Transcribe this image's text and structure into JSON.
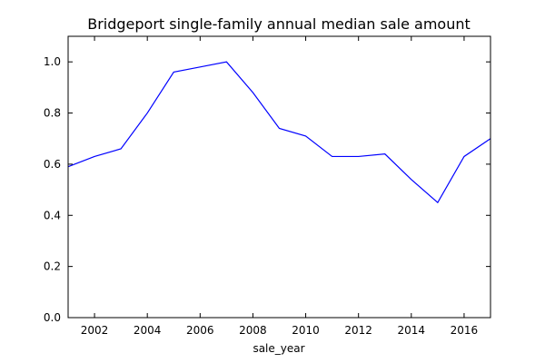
{
  "chart_data": {
    "type": "line",
    "title": "Bridgeport single-family annual median sale amount",
    "xlabel": "sale_year",
    "ylabel": "",
    "xlim": [
      2001,
      2017
    ],
    "ylim": [
      0.0,
      1.1
    ],
    "x_ticks": [
      2002,
      2004,
      2006,
      2008,
      2010,
      2012,
      2014,
      2016
    ],
    "y_ticks": [
      0.0,
      0.2,
      0.4,
      0.6,
      0.8,
      1.0
    ],
    "x_tick_labels": [
      "2002",
      "2004",
      "2006",
      "2008",
      "2010",
      "2012",
      "2014",
      "2016"
    ],
    "y_tick_labels": [
      "0.0",
      "0.2",
      "0.4",
      "0.6",
      "0.8",
      "1.0"
    ],
    "grid": false,
    "legend": "none",
    "series": [
      {
        "color": "#0000ff",
        "x": [
          2001,
          2002,
          2003,
          2004,
          2005,
          2006,
          2007,
          2008,
          2009,
          2010,
          2011,
          2012,
          2013,
          2014,
          2015,
          2016,
          2017
        ],
        "values": [
          0.59,
          0.63,
          0.66,
          0.8,
          0.96,
          0.98,
          1.0,
          0.88,
          0.74,
          0.71,
          0.63,
          0.63,
          0.64,
          0.54,
          0.45,
          0.63,
          0.7
        ]
      }
    ]
  }
}
